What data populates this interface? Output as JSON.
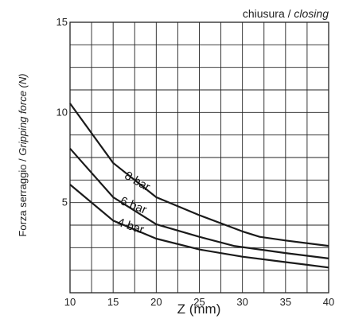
{
  "chart_data": {
    "type": "line",
    "title": "chiusura / closing",
    "title_parts": {
      "main": "chiusura / ",
      "italic": "closing"
    },
    "xlabel": "Z (mm)",
    "ylabel": "Forza serraggio / Gripping force  (N)",
    "ylabel_parts": {
      "main": "Forza serraggio / ",
      "italic": "Gripping force  (N)"
    },
    "xlim": [
      10,
      40
    ],
    "ylim": [
      0,
      15
    ],
    "xticks": [
      10,
      15,
      20,
      25,
      30,
      35,
      40
    ],
    "yticks": [
      5,
      10,
      15
    ],
    "grid": true,
    "grid_x_step": 2.5,
    "grid_y_step": 1.25,
    "series": [
      {
        "name": "8 bar",
        "x": [
          10,
          15,
          20,
          25,
          30,
          32,
          35,
          40
        ],
        "y": [
          10.5,
          7.2,
          5.3,
          4.3,
          3.4,
          3.1,
          2.9,
          2.6
        ]
      },
      {
        "name": "6 bar",
        "x": [
          10,
          15,
          20,
          25,
          29,
          32,
          35,
          40
        ],
        "y": [
          8.0,
          5.3,
          3.8,
          3.1,
          2.6,
          2.4,
          2.2,
          1.9
        ]
      },
      {
        "name": "4 bar",
        "x": [
          10,
          15,
          20,
          25,
          30,
          35,
          40
        ],
        "y": [
          6.0,
          4.0,
          3.0,
          2.4,
          2.0,
          1.7,
          1.4
        ]
      }
    ],
    "series_labels": [
      {
        "text": "8 bar",
        "x": 17.6,
        "y": 6.0,
        "angle": -30
      },
      {
        "text": "6 bar",
        "x": 17.2,
        "y": 4.65,
        "angle": -22
      },
      {
        "text": "4 bar",
        "x": 16.9,
        "y": 3.5,
        "angle": -18
      }
    ]
  }
}
